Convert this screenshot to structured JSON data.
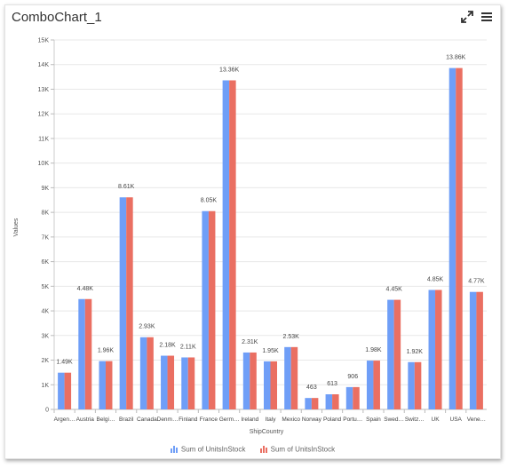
{
  "header": {
    "title": "ComboChart_1",
    "expand_icon": "expand-icon",
    "menu_icon": "hamburger-menu-icon"
  },
  "chart_data": {
    "type": "bar",
    "xlabel": "ShipCountry",
    "ylabel": "Values",
    "ylim": [
      0,
      15000
    ],
    "y_ticks": [
      "0",
      "1K",
      "2K",
      "3K",
      "4K",
      "5K",
      "6K",
      "7K",
      "8K",
      "9K",
      "10K",
      "11K",
      "12K",
      "13K",
      "14K",
      "15K"
    ],
    "categories": [
      "Argen…",
      "Austria",
      "Belgi…",
      "Brazil",
      "Canada",
      "Denm…",
      "Finland",
      "France",
      "Germ…",
      "Ireland",
      "Italy",
      "Mexico",
      "Norway",
      "Poland",
      "Portu…",
      "Spain",
      "Swed…",
      "Switz…",
      "UK",
      "USA",
      "Vene…"
    ],
    "series": [
      {
        "name": "Sum of UnitsInStock",
        "color": "#6f9ef7",
        "values": [
          1490,
          4480,
          1960,
          8610,
          2930,
          2180,
          2110,
          8050,
          13360,
          2310,
          1950,
          2530,
          463,
          613,
          906,
          1980,
          4450,
          1920,
          4850,
          13860,
          4770
        ]
      },
      {
        "name": "Sum of UnitsInStock",
        "color": "#ea6f62",
        "values": [
          1490,
          4480,
          1960,
          8610,
          2930,
          2180,
          2110,
          8050,
          13360,
          2310,
          1950,
          2530,
          463,
          613,
          906,
          1980,
          4450,
          1920,
          4850,
          13860,
          4770
        ]
      }
    ],
    "data_labels": [
      "1.49K",
      "4.48K",
      "1.96K",
      "8.61K",
      "2.93K",
      "2.18K",
      "2.11K",
      "8.05K",
      "13.36K",
      "2.31K",
      "1.95K",
      "2.53K",
      "463",
      "613",
      "906",
      "1.98K",
      "4.45K",
      "1.92K",
      "4.85K",
      "13.86K",
      "4.77K"
    ],
    "grid": true,
    "legend_position": "bottom"
  }
}
